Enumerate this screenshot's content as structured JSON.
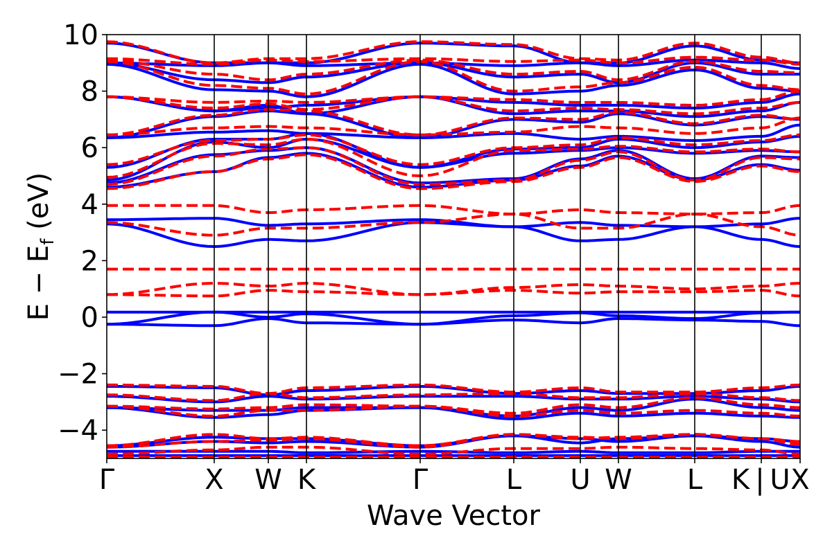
{
  "chart_data": {
    "type": "line",
    "title": "",
    "xlabel": "Wave Vector",
    "ylabel": "E − E_f (eV)",
    "ylabel_parts": {
      "main": "E − E",
      "sub": "f",
      "unit": " (eV)"
    },
    "ylim": [
      -5,
      10
    ],
    "yticks": [
      10,
      8,
      6,
      4,
      2,
      0,
      -2,
      -4
    ],
    "ytick_labels": [
      "10",
      "8",
      "6",
      "4",
      "2",
      "0",
      "−2",
      "−4"
    ],
    "kpoints": [
      0,
      155,
      233,
      288,
      452,
      587,
      683,
      738,
      848,
      944,
      1000
    ],
    "kpoint_labels": [
      "Γ",
      "X",
      "W",
      "K",
      "Γ",
      "L",
      "U",
      "W",
      "L",
      "K",
      "X"
    ],
    "extra_label_text": {
      "separator": "|",
      "second": "U"
    },
    "xlim": [
      0,
      1000
    ],
    "colors": {
      "series1": "#0000ff",
      "series2": "#ff0000",
      "axis": "#000000"
    },
    "series": [
      {
        "name": "solid-blue",
        "style": "solid",
        "bands": [
          [
            -4.9,
            -4.9,
            -4.9,
            -4.9,
            -4.9,
            -4.9,
            -4.9,
            -4.9,
            -4.9,
            -4.9,
            -4.9
          ],
          [
            -4.75,
            -4.75,
            -4.75,
            -4.8,
            -4.75,
            -4.8,
            -4.75,
            -4.8,
            -4.8,
            -4.75,
            -4.75
          ],
          [
            -4.6,
            -4.4,
            -4.45,
            -4.4,
            -4.6,
            -4.2,
            -4.3,
            -4.4,
            -4.2,
            -4.4,
            -4.6
          ],
          [
            -4.55,
            -4.25,
            -4.3,
            -4.3,
            -4.55,
            -4.2,
            -4.45,
            -4.3,
            -4.2,
            -4.3,
            -4.4
          ],
          [
            -3.2,
            -3.55,
            -3.45,
            -3.3,
            -3.2,
            -3.6,
            -3.4,
            -3.5,
            -3.4,
            -3.5,
            -3.55
          ],
          [
            -3.2,
            -3.3,
            -3.3,
            -3.2,
            -3.2,
            -3.5,
            -3.2,
            -3.3,
            -2.9,
            -3.2,
            -3.3
          ],
          [
            -2.8,
            -3.0,
            -2.8,
            -2.9,
            -2.8,
            -2.8,
            -2.9,
            -2.9,
            -2.8,
            -2.9,
            -3.0
          ],
          [
            -2.45,
            -2.5,
            -2.75,
            -2.6,
            -2.45,
            -2.7,
            -2.6,
            -2.7,
            -2.7,
            -2.6,
            -2.45
          ],
          [
            -0.25,
            -0.3,
            -0.05,
            -0.2,
            -0.25,
            -0.1,
            -0.2,
            -0.05,
            -0.1,
            -0.15,
            -0.3
          ],
          [
            -0.25,
            0.18,
            -0.0,
            0.12,
            -0.25,
            0.05,
            0.15,
            0.05,
            -0.05,
            0.15,
            0.18
          ],
          [
            0.18,
            0.18,
            0.18,
            0.18,
            0.18,
            0.18,
            0.18,
            0.18,
            0.18,
            0.18,
            0.18
          ],
          [
            3.3,
            2.5,
            2.75,
            2.7,
            3.35,
            3.2,
            2.7,
            2.75,
            3.2,
            2.75,
            2.5
          ],
          [
            3.45,
            3.5,
            3.25,
            3.3,
            3.45,
            3.2,
            3.35,
            3.25,
            3.2,
            3.3,
            3.5
          ],
          [
            4.6,
            5.15,
            5.65,
            5.8,
            4.6,
            4.85,
            5.35,
            5.7,
            4.85,
            5.4,
            5.2
          ],
          [
            4.75,
            5.75,
            5.9,
            6.0,
            4.75,
            4.9,
            5.6,
            5.9,
            4.9,
            5.7,
            5.65
          ],
          [
            4.85,
            6.2,
            6.0,
            6.3,
            5.3,
            5.8,
            5.9,
            6.0,
            5.8,
            5.9,
            5.85
          ],
          [
            5.3,
            6.3,
            6.3,
            6.5,
            5.3,
            5.95,
            6.0,
            6.3,
            6.0,
            6.2,
            6.4
          ],
          [
            6.35,
            6.55,
            6.6,
            6.5,
            6.35,
            6.5,
            6.3,
            6.4,
            6.25,
            6.4,
            6.8
          ],
          [
            6.35,
            7.1,
            7.3,
            7.2,
            6.35,
            7.0,
            6.9,
            7.2,
            6.8,
            7.1,
            7.0
          ],
          [
            7.8,
            7.3,
            7.5,
            7.2,
            7.8,
            7.2,
            7.3,
            7.3,
            7.1,
            7.3,
            7.6
          ],
          [
            7.8,
            7.3,
            7.4,
            7.5,
            7.8,
            7.6,
            7.5,
            7.5,
            7.4,
            7.6,
            7.9
          ],
          [
            8.95,
            8.05,
            8.0,
            7.8,
            8.95,
            7.9,
            8.0,
            8.2,
            8.75,
            8.1,
            8.0
          ],
          [
            9.0,
            8.4,
            8.3,
            8.5,
            9.0,
            8.5,
            8.6,
            8.3,
            9.0,
            8.6,
            8.6
          ],
          [
            9.0,
            8.9,
            9.0,
            8.9,
            9.0,
            8.9,
            9.0,
            8.9,
            9.1,
            9.0,
            8.8
          ],
          [
            9.7,
            9.0,
            9.0,
            9.0,
            9.7,
            9.6,
            9.0,
            9.0,
            9.6,
            9.1,
            9.0
          ]
        ]
      },
      {
        "name": "dashed-red",
        "style": "dashed",
        "bands": [
          [
            -4.95,
            -4.95,
            -4.95,
            -4.95,
            -4.95,
            -4.95,
            -4.95,
            -4.95,
            -4.95,
            -4.95,
            -4.95
          ],
          [
            -4.85,
            -4.7,
            -4.6,
            -4.6,
            -4.85,
            -4.65,
            -4.65,
            -4.6,
            -4.65,
            -4.7,
            -4.85
          ],
          [
            -4.6,
            -4.4,
            -4.35,
            -4.3,
            -4.6,
            -4.15,
            -4.25,
            -4.3,
            -4.15,
            -4.3,
            -4.5
          ],
          [
            -4.55,
            -4.15,
            -4.3,
            -4.25,
            -4.55,
            -4.15,
            -4.3,
            -4.25,
            -4.15,
            -4.3,
            -4.4
          ],
          [
            -3.15,
            -3.5,
            -3.3,
            -3.3,
            -3.15,
            -3.5,
            -3.3,
            -3.4,
            -3.3,
            -3.4,
            -3.5
          ],
          [
            -3.15,
            -3.25,
            -3.2,
            -3.1,
            -3.15,
            -3.4,
            -3.1,
            -3.2,
            -2.85,
            -3.1,
            -3.2
          ],
          [
            -2.75,
            -2.95,
            -2.7,
            -2.85,
            -2.75,
            -2.7,
            -2.85,
            -2.85,
            -2.7,
            -2.85,
            -2.95
          ],
          [
            -2.4,
            -2.45,
            -2.7,
            -2.5,
            -2.4,
            -2.65,
            -2.5,
            -2.65,
            -2.65,
            -2.5,
            -2.4
          ],
          [
            0.8,
            0.75,
            0.95,
            0.9,
            0.8,
            0.95,
            0.85,
            0.9,
            0.9,
            0.95,
            0.75
          ],
          [
            0.8,
            1.2,
            1.1,
            1.2,
            0.8,
            1.05,
            1.15,
            1.1,
            1.0,
            1.1,
            1.2
          ],
          [
            1.7,
            1.7,
            1.7,
            1.7,
            1.7,
            1.7,
            1.7,
            1.7,
            1.7,
            1.7,
            1.7
          ],
          [
            3.35,
            2.9,
            3.15,
            3.15,
            3.35,
            3.65,
            3.15,
            3.15,
            3.65,
            3.2,
            2.9
          ],
          [
            3.95,
            3.95,
            3.7,
            3.8,
            3.95,
            3.65,
            3.8,
            3.7,
            3.65,
            3.7,
            3.95
          ],
          [
            4.55,
            5.15,
            5.6,
            5.75,
            4.55,
            4.8,
            5.3,
            5.65,
            4.8,
            5.35,
            5.15
          ],
          [
            4.7,
            5.7,
            5.95,
            6.0,
            4.7,
            4.85,
            5.55,
            5.85,
            4.85,
            5.65,
            5.6
          ],
          [
            4.95,
            6.15,
            6.1,
            6.3,
            5.0,
            5.9,
            5.95,
            6.05,
            5.85,
            5.95,
            5.85
          ],
          [
            5.4,
            6.25,
            6.3,
            6.45,
            5.4,
            6.0,
            6.1,
            6.35,
            6.1,
            6.25,
            6.45
          ],
          [
            6.45,
            6.7,
            6.75,
            6.7,
            6.45,
            6.55,
            6.75,
            6.7,
            6.5,
            6.7,
            7.05
          ],
          [
            6.45,
            7.15,
            7.35,
            7.3,
            6.45,
            7.05,
            7.0,
            7.25,
            6.85,
            7.15,
            7.0
          ],
          [
            7.8,
            7.4,
            7.55,
            7.35,
            7.8,
            7.3,
            7.4,
            7.35,
            7.2,
            7.4,
            7.6
          ],
          [
            7.8,
            7.6,
            7.65,
            7.6,
            7.8,
            7.7,
            7.6,
            7.6,
            7.5,
            7.7,
            8.0
          ],
          [
            9.05,
            8.2,
            8.1,
            7.9,
            9.05,
            8.0,
            8.15,
            8.3,
            8.85,
            8.2,
            8.05
          ],
          [
            9.1,
            8.6,
            8.4,
            8.6,
            9.1,
            8.6,
            8.7,
            8.4,
            9.05,
            8.7,
            8.65
          ],
          [
            9.15,
            8.95,
            9.1,
            9.05,
            9.15,
            9.05,
            9.1,
            9.0,
            9.2,
            9.1,
            8.95
          ],
          [
            9.75,
            9.0,
            9.15,
            9.15,
            9.75,
            9.65,
            9.15,
            9.1,
            9.7,
            9.2,
            9.0
          ]
        ]
      }
    ]
  }
}
